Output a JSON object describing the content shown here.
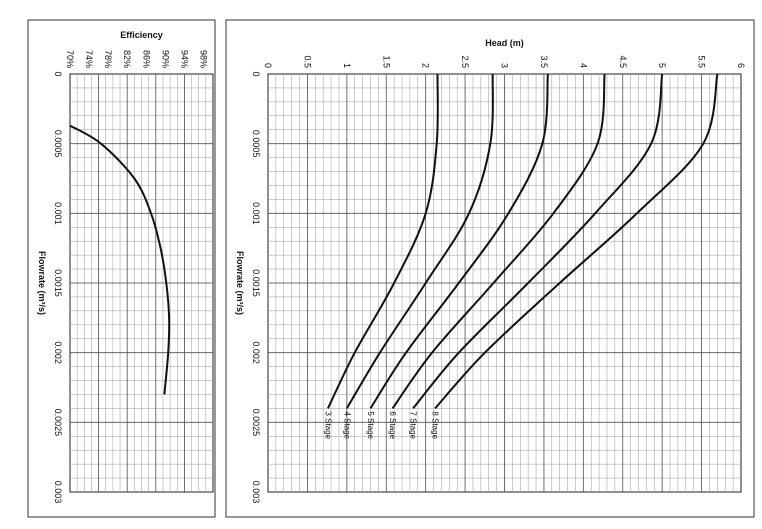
{
  "chart_data": [
    {
      "type": "line",
      "title": "",
      "xlabel": "Head (m)",
      "ylabel": "Flowrate (m³/s)",
      "orientation": "rotated-90",
      "head_range": [
        0,
        6
      ],
      "head_ticks": [
        "0",
        "0.5",
        "1",
        "1.5",
        "2",
        "2.5",
        "3",
        "3.5",
        "4",
        "4.5",
        "5",
        "5.5",
        "6"
      ],
      "flow_range": [
        0,
        0.003
      ],
      "flow_ticks": [
        "0",
        "0.0005",
        "0.001",
        "0.0015",
        "0.002",
        "0.0025",
        "0.003"
      ],
      "grid": true,
      "series": [
        {
          "name": "3 Stage",
          "flow": [
            0,
            0.0005,
            0.001,
            0.0015,
            0.002,
            0.0024
          ],
          "head": [
            2.15,
            2.14,
            2.0,
            1.6,
            1.1,
            0.76
          ]
        },
        {
          "name": "4 Stage",
          "flow": [
            0,
            0.0005,
            0.001,
            0.0015,
            0.002,
            0.0024
          ],
          "head": [
            2.85,
            2.82,
            2.55,
            2.0,
            1.42,
            1.0
          ]
        },
        {
          "name": "5 Stage",
          "flow": [
            0,
            0.0005,
            0.001,
            0.0015,
            0.002,
            0.0024
          ],
          "head": [
            3.55,
            3.48,
            3.05,
            2.42,
            1.75,
            1.3
          ]
        },
        {
          "name": "6 Stage",
          "flow": [
            0,
            0.0005,
            0.001,
            0.0015,
            0.002,
            0.0024
          ],
          "head": [
            4.27,
            4.18,
            3.62,
            2.86,
            2.08,
            1.58
          ]
        },
        {
          "name": "7 Stage",
          "flow": [
            0,
            0.0005,
            0.001,
            0.0015,
            0.002,
            0.0024
          ],
          "head": [
            5.0,
            4.86,
            4.15,
            3.3,
            2.42,
            1.84
          ]
        },
        {
          "name": "8 Stage",
          "flow": [
            0,
            0.0005,
            0.001,
            0.0015,
            0.002,
            0.0024
          ],
          "head": [
            5.7,
            5.52,
            4.68,
            3.7,
            2.75,
            2.12
          ]
        }
      ]
    },
    {
      "type": "line",
      "title": "",
      "xlabel": "Efficiency",
      "ylabel": "Flowrate (m³/s)",
      "orientation": "rotated-90",
      "efficiency_range": [
        70,
        100
      ],
      "efficiency_ticks": [
        "70%",
        "74%",
        "78%",
        "82%",
        "86%",
        "90%",
        "94%",
        "98%"
      ],
      "flow_range": [
        0,
        0.003
      ],
      "flow_ticks": [
        "0",
        "0.0005",
        "0.001",
        "0.0015",
        "0.002",
        "0.0025",
        "0.003"
      ],
      "grid": true,
      "series": [
        {
          "flow": [
            0.00037,
            0.0005,
            0.00075,
            0.001,
            0.00125,
            0.0015,
            0.00175,
            0.002,
            0.0023
          ],
          "efficiency": [
            70.0,
            76.5,
            83.5,
            87.0,
            89.0,
            90.2,
            90.8,
            90.6,
            89.8
          ]
        }
      ]
    }
  ]
}
